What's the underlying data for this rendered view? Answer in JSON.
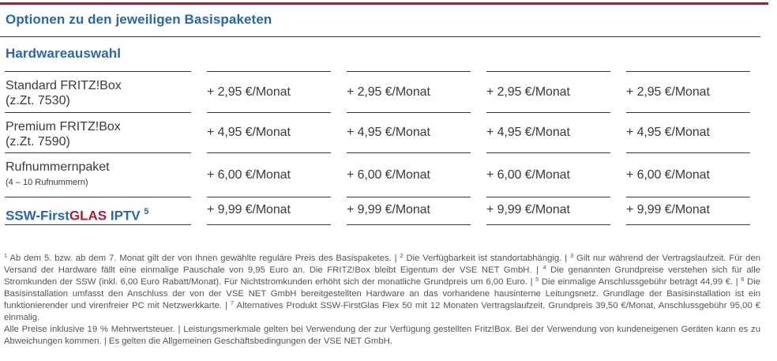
{
  "header": {
    "title": "Optionen zu den jeweiligen Basispaketen",
    "section_title": "Hardwareauswahl"
  },
  "colors": {
    "accent_blue": "#2866ae",
    "accent_red": "#ab1c2e",
    "text_dark": "#3a3a39",
    "footnote_gray": "#4d565e"
  },
  "table": {
    "columns": 4,
    "rows": [
      {
        "name": "Standard FRITZ!Box",
        "sub": "(z.Zt. 7530)",
        "sub_small": false,
        "price": "+ 2,95 €/Monat"
      },
      {
        "name": "Premium FRITZ!Box",
        "sub": "(z.Zt. 7590)",
        "sub_small": false,
        "price": "+ 4,95 €/Monat"
      },
      {
        "name": "Rufnummernpaket",
        "sub": "(4 – 10 Rufnummern)",
        "sub_small": true,
        "price": "+ 6,00 €/Monat"
      },
      {
        "name_parts": [
          {
            "text": "SSW-First",
            "color": "blue"
          },
          {
            "text": "GLAS",
            "color": "red"
          },
          {
            "text": " IPTV",
            "color": "blue"
          }
        ],
        "sup": "5",
        "price": "+ 9,99 €/Monat"
      }
    ]
  },
  "footnotes": {
    "paragraphs": [
      [
        {
          "sup": "1",
          "text": " Ab dem 5. bzw. ab dem 7. Monat gilt der von Ihnen gewählte reguläre Preis des Basispaketes. | "
        },
        {
          "sup": "2",
          "text": " Die Verfügbarkeit ist standortabhängig. | "
        },
        {
          "sup": "3",
          "text": " Gilt nur während der Vertragslaufzeit. Für den Versand der Hardware fällt eine einmalige Pauschale von 9,95 Euro an. Die FRITZ!Box bleibt Eigentum der VSE NET GmbH. | "
        },
        {
          "sup": "4",
          "text": " Die genannten Grundpreise verstehen sich für alle Stromkunden der SSW (inkl. 6,00 Euro Rabatt/Monat). Für Nichtstromkunden erhöht sich der monatliche Grundpreis um 6,00 Euro. | "
        },
        {
          "sup": "5",
          "text": " Die einmalige Anschlussgebühr beträgt 44,99 €. | "
        },
        {
          "sup": "6",
          "text": " Die Basisinstallation umfasst den Anschluss der von der VSE NET GmbH bereitgestellten Hardware an das vorhandene hausinterne Leitungsnetz. Grundlage der Basisinstallation ist ein funktionierender und virenfreier PC mit Netzwerkkarte. | "
        },
        {
          "sup": "7",
          "text": " Alternatives Produkt SSW-FirstGlas Flex 50 mit 12 Monaten Vertragslaufzeit, Grundpreis 39,50 €/Monat, Anschlussgebühr 95,00 € einmalig."
        }
      ],
      [
        {
          "text": "Alle Preise inklusive 19 % Mehrwertsteuer. | Leistungsmerkmale gelten bei Verwendung der zur Verfügung gestellten Fritz!Box. Bei der Verwendung von kundeneigenen Geräten kann es zu Abweichungen kommen. | Es gelten die Allgemeinen Geschäftsbedingungen der VSE NET GmbH."
        }
      ]
    ]
  }
}
